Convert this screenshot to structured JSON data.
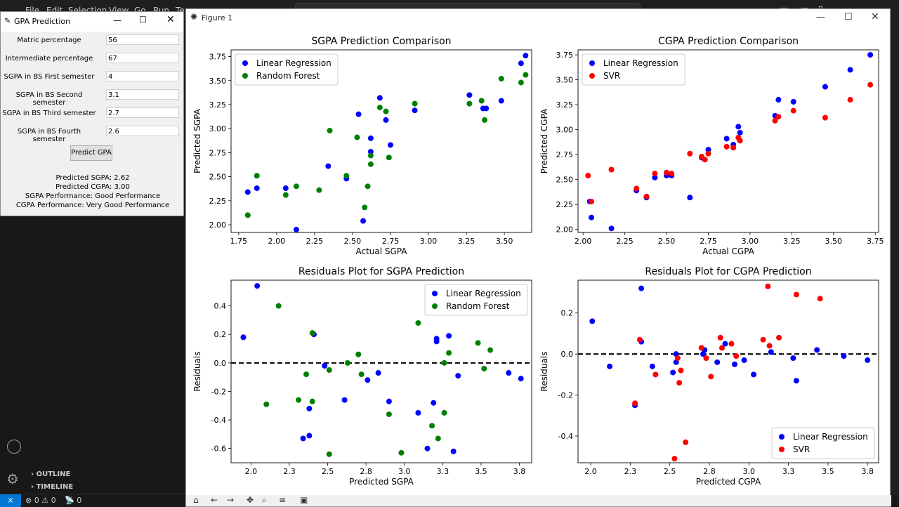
{
  "vscode": {
    "menu": [
      "File",
      "Edit",
      "Selection",
      "View",
      "Go",
      "Run",
      "Te"
    ],
    "outline_label": "OUTLINE",
    "timeline_label": "TIMELINE",
    "status": {
      "problems": "⊗ 0 ⚠ 0",
      "ports": "0"
    }
  },
  "tk": {
    "title": "GPA Prediction",
    "fields": [
      {
        "label": "Matric percentage",
        "value": "56"
      },
      {
        "label": "Intermediate percentage",
        "value": "67"
      },
      {
        "label": "SGPA in BS First semester",
        "value": "4"
      },
      {
        "label": "SGPA in BS Second semester",
        "value": "3.1"
      },
      {
        "label": "SGPA in BS Third semester",
        "value": "2.7"
      },
      {
        "label": "SGPA in BS Fourth semester",
        "value": "2.6"
      }
    ],
    "button": "Predict GPA",
    "results": [
      "Predicted SGPA: 2.62",
      "Predicted CGPA: 3.00",
      "SGPA Performance: Good Performance",
      "CGPA Performance: Very Good Performance"
    ]
  },
  "figure": {
    "title": "Figure 1"
  },
  "colors": {
    "blue": "#0000ff",
    "green": "#008000",
    "red": "#ff0000"
  },
  "chart_data": [
    {
      "type": "scatter",
      "title": "SGPA Prediction Comparison",
      "xlabel": "Actual SGPA",
      "ylabel": "Predicted SGPA",
      "xlim": [
        1.7,
        3.68
      ],
      "ylim": [
        1.92,
        3.82
      ],
      "xticks": [
        1.75,
        2.0,
        2.25,
        2.5,
        2.75,
        3.0,
        3.25,
        3.5
      ],
      "yticks": [
        2.0,
        2.25,
        2.5,
        2.75,
        3.0,
        3.25,
        3.5,
        3.75
      ],
      "tick_format": 2,
      "legend": "top-left",
      "series": [
        {
          "name": "Linear Regression",
          "color": "blue",
          "points": [
            [
              1.81,
              2.34
            ],
            [
              1.87,
              2.38
            ],
            [
              2.06,
              2.38
            ],
            [
              2.13,
              1.95
            ],
            [
              2.34,
              2.61
            ],
            [
              2.46,
              2.48
            ],
            [
              2.54,
              3.15
            ],
            [
              2.57,
              2.04
            ],
            [
              2.62,
              2.76
            ],
            [
              2.62,
              2.9
            ],
            [
              2.68,
              3.32
            ],
            [
              2.72,
              3.09
            ],
            [
              2.75,
              2.83
            ],
            [
              2.91,
              3.19
            ],
            [
              3.27,
              3.35
            ],
            [
              3.36,
              3.21
            ],
            [
              3.38,
              3.21
            ],
            [
              3.48,
              3.29
            ],
            [
              3.61,
              3.68
            ],
            [
              3.64,
              3.76
            ]
          ]
        },
        {
          "name": "Random Forest",
          "color": "green",
          "points": [
            [
              1.81,
              2.1
            ],
            [
              1.87,
              2.51
            ],
            [
              2.06,
              2.31
            ],
            [
              2.13,
              2.4
            ],
            [
              2.28,
              2.36
            ],
            [
              2.35,
              2.98
            ],
            [
              2.46,
              2.51
            ],
            [
              2.53,
              2.91
            ],
            [
              2.58,
              2.18
            ],
            [
              2.6,
              2.4
            ],
            [
              2.62,
              2.72
            ],
            [
              2.62,
              2.63
            ],
            [
              2.68,
              3.22
            ],
            [
              2.72,
              3.18
            ],
            [
              2.74,
              2.7
            ],
            [
              2.91,
              3.26
            ],
            [
              3.27,
              3.26
            ],
            [
              3.35,
              3.29
            ],
            [
              3.37,
              3.09
            ],
            [
              3.48,
              3.52
            ],
            [
              3.61,
              3.48
            ],
            [
              3.64,
              3.56
            ]
          ]
        }
      ]
    },
    {
      "type": "scatter",
      "title": "CGPA Prediction Comparison",
      "xlabel": "Actual CGPA",
      "ylabel": "Predicted CGPA",
      "xlim": [
        1.97,
        3.77
      ],
      "ylim": [
        1.97,
        3.8
      ],
      "xticks": [
        2.0,
        2.25,
        2.5,
        2.75,
        3.0,
        3.25,
        3.5,
        3.75
      ],
      "yticks": [
        2.0,
        2.25,
        2.5,
        2.75,
        3.0,
        3.25,
        3.5,
        3.75
      ],
      "tick_format": 2,
      "legend": "top-left",
      "series": [
        {
          "name": "Linear Regression",
          "color": "blue",
          "points": [
            [
              2.04,
              2.28
            ],
            [
              2.05,
              2.12
            ],
            [
              2.17,
              2.01
            ],
            [
              2.32,
              2.39
            ],
            [
              2.38,
              2.32
            ],
            [
              2.43,
              2.52
            ],
            [
              2.5,
              2.54
            ],
            [
              2.53,
              2.54
            ],
            [
              2.64,
              2.32
            ],
            [
              2.71,
              2.72
            ],
            [
              2.75,
              2.8
            ],
            [
              2.86,
              2.91
            ],
            [
              2.9,
              2.85
            ],
            [
              2.93,
              3.03
            ],
            [
              2.94,
              2.97
            ],
            [
              3.15,
              3.14
            ],
            [
              3.17,
              3.3
            ],
            [
              3.26,
              3.28
            ],
            [
              3.45,
              3.43
            ],
            [
              3.6,
              3.6
            ],
            [
              3.72,
              3.75
            ]
          ]
        },
        {
          "name": "SVR",
          "color": "red",
          "points": [
            [
              2.03,
              2.54
            ],
            [
              2.05,
              2.28
            ],
            [
              2.17,
              2.6
            ],
            [
              2.32,
              2.41
            ],
            [
              2.38,
              2.33
            ],
            [
              2.43,
              2.56
            ],
            [
              2.5,
              2.57
            ],
            [
              2.53,
              2.56
            ],
            [
              2.64,
              2.76
            ],
            [
              2.71,
              2.73
            ],
            [
              2.73,
              2.7
            ],
            [
              2.75,
              2.76
            ],
            [
              2.86,
              2.83
            ],
            [
              2.9,
              2.82
            ],
            [
              2.93,
              2.92
            ],
            [
              2.94,
              2.89
            ],
            [
              3.15,
              3.09
            ],
            [
              3.17,
              3.13
            ],
            [
              3.26,
              3.19
            ],
            [
              3.45,
              3.12
            ],
            [
              3.6,
              3.3
            ],
            [
              3.72,
              3.45
            ]
          ]
        }
      ]
    },
    {
      "type": "scatter",
      "title": "Residuals Plot for SGPA Prediction",
      "xlabel": "Predicted SGPA",
      "ylabel": "Residuals",
      "xlim": [
        1.87,
        3.83
      ],
      "ylim": [
        -0.7,
        0.58
      ],
      "xticks": [
        2.0,
        2.25,
        2.5,
        2.75,
        3.0,
        3.25,
        3.5,
        3.75
      ],
      "yticks": [
        -0.6,
        -0.4,
        -0.2,
        0.0,
        0.2,
        0.4
      ],
      "tick_format": 1,
      "zero_line": true,
      "legend": "top-right",
      "series": [
        {
          "name": "Linear Regression",
          "color": "blue",
          "points": [
            [
              1.95,
              0.18
            ],
            [
              2.04,
              0.54
            ],
            [
              2.34,
              -0.53
            ],
            [
              2.38,
              -0.32
            ],
            [
              2.38,
              -0.51
            ],
            [
              2.41,
              0.2
            ],
            [
              2.48,
              -0.02
            ],
            [
              2.61,
              -0.26
            ],
            [
              2.76,
              -0.12
            ],
            [
              2.83,
              -0.07
            ],
            [
              2.9,
              -0.27
            ],
            [
              3.09,
              -0.35
            ],
            [
              3.15,
              -0.6
            ],
            [
              3.19,
              -0.28
            ],
            [
              3.21,
              0.17
            ],
            [
              3.21,
              0.15
            ],
            [
              3.29,
              0.19
            ],
            [
              3.32,
              -0.62
            ],
            [
              3.35,
              -0.09
            ],
            [
              3.68,
              -0.07
            ],
            [
              3.76,
              -0.11
            ]
          ]
        },
        {
          "name": "Random Forest",
          "color": "green",
          "points": [
            [
              2.1,
              -0.29
            ],
            [
              2.18,
              0.4
            ],
            [
              2.31,
              -0.26
            ],
            [
              2.36,
              -0.08
            ],
            [
              2.4,
              0.21
            ],
            [
              2.4,
              -0.27
            ],
            [
              2.51,
              -0.05
            ],
            [
              2.51,
              -0.64
            ],
            [
              2.63,
              0.0
            ],
            [
              2.7,
              0.06
            ],
            [
              2.72,
              -0.08
            ],
            [
              2.9,
              -0.36
            ],
            [
              2.98,
              -0.63
            ],
            [
              3.09,
              0.28
            ],
            [
              3.18,
              -0.44
            ],
            [
              3.22,
              -0.53
            ],
            [
              3.26,
              -0.35
            ],
            [
              3.26,
              0.0
            ],
            [
              3.29,
              0.07
            ],
            [
              3.48,
              0.14
            ],
            [
              3.52,
              -0.04
            ],
            [
              3.56,
              0.09
            ]
          ]
        }
      ]
    },
    {
      "type": "scatter",
      "title": "Residuals Plot for CGPA Prediction",
      "xlabel": "Predicted CGPA",
      "ylabel": "Residuals",
      "xlim": [
        1.92,
        3.82
      ],
      "ylim": [
        -0.53,
        0.36
      ],
      "xticks": [
        2.0,
        2.25,
        2.5,
        2.75,
        3.0,
        3.25,
        3.5,
        3.75
      ],
      "yticks": [
        -0.4,
        -0.2,
        0.0,
        0.2
      ],
      "tick_format": 1,
      "zero_line": true,
      "legend": "bottom-right",
      "series": [
        {
          "name": "Linear Regression",
          "color": "blue",
          "points": [
            [
              2.01,
              0.16
            ],
            [
              2.12,
              -0.06
            ],
            [
              2.28,
              -0.25
            ],
            [
              2.32,
              0.32
            ],
            [
              2.32,
              0.06
            ],
            [
              2.39,
              -0.06
            ],
            [
              2.52,
              -0.09
            ],
            [
              2.54,
              0.0
            ],
            [
              2.54,
              -0.04
            ],
            [
              2.71,
              0.0
            ],
            [
              2.72,
              0.02
            ],
            [
              2.8,
              -0.04
            ],
            [
              2.85,
              0.05
            ],
            [
              2.91,
              -0.05
            ],
            [
              2.97,
              -0.03
            ],
            [
              3.03,
              -0.1
            ],
            [
              3.14,
              0.01
            ],
            [
              3.28,
              -0.02
            ],
            [
              3.3,
              -0.13
            ],
            [
              3.43,
              0.02
            ],
            [
              3.6,
              -0.01
            ],
            [
              3.75,
              -0.03
            ]
          ]
        },
        {
          "name": "SVR",
          "color": "red",
          "points": [
            [
              2.28,
              -0.24
            ],
            [
              2.31,
              0.07
            ],
            [
              2.41,
              -0.1
            ],
            [
              2.53,
              -0.51
            ],
            [
              2.55,
              -0.02
            ],
            [
              2.56,
              -0.14
            ],
            [
              2.57,
              -0.08
            ],
            [
              2.6,
              -0.43
            ],
            [
              2.7,
              0.03
            ],
            [
              2.73,
              -0.02
            ],
            [
              2.76,
              -0.11
            ],
            [
              2.82,
              0.08
            ],
            [
              2.83,
              0.03
            ],
            [
              2.89,
              0.05
            ],
            [
              2.92,
              -0.01
            ],
            [
              3.09,
              0.07
            ],
            [
              3.12,
              0.33
            ],
            [
              3.13,
              0.04
            ],
            [
              3.19,
              0.08
            ],
            [
              3.3,
              0.29
            ],
            [
              3.45,
              0.27
            ]
          ]
        }
      ]
    }
  ]
}
